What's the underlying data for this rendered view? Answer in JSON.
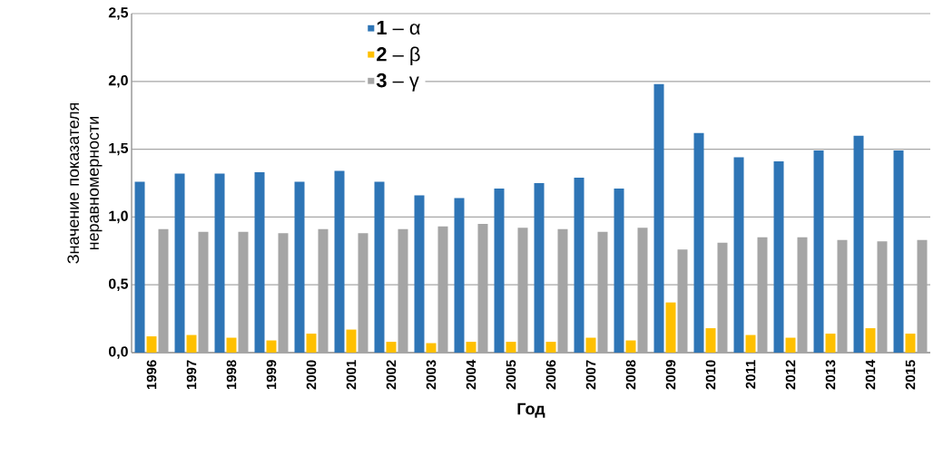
{
  "chart_data": {
    "type": "bar",
    "xlabel": "Год",
    "ylabel": "Значение показателя неравномерности",
    "categories": [
      "1996",
      "1997",
      "1998",
      "1999",
      "2000",
      "2001",
      "2002",
      "2003",
      "2004",
      "2005",
      "2006",
      "2007",
      "2008",
      "2009",
      "2010",
      "2011",
      "2012",
      "2013",
      "2014",
      "2015"
    ],
    "series": [
      {
        "name": "**1** – α",
        "color": "#2e75b6",
        "values": [
          1.26,
          1.32,
          1.32,
          1.33,
          1.26,
          1.34,
          1.26,
          1.16,
          1.14,
          1.21,
          1.25,
          1.29,
          1.21,
          1.98,
          1.62,
          1.44,
          1.41,
          1.49,
          1.6,
          1.49
        ]
      },
      {
        "name": "**2** – β",
        "color": "#ffc000",
        "values": [
          0.12,
          0.13,
          0.11,
          0.09,
          0.14,
          0.17,
          0.08,
          0.07,
          0.08,
          0.08,
          0.08,
          0.11,
          0.09,
          0.37,
          0.18,
          0.13,
          0.11,
          0.14,
          0.18,
          0.14
        ]
      },
      {
        "name": "**3** – γ",
        "color": "#a5a5a5",
        "values": [
          0.91,
          0.89,
          0.89,
          0.88,
          0.91,
          0.88,
          0.91,
          0.93,
          0.95,
          0.92,
          0.91,
          0.89,
          0.92,
          0.76,
          0.81,
          0.85,
          0.85,
          0.83,
          0.82,
          0.83
        ]
      }
    ],
    "ylim": [
      0,
      2.5
    ],
    "yticks": [
      {
        "value": 0,
        "label": "0,0"
      },
      {
        "value": 0.5,
        "label": "0,5"
      },
      {
        "value": 1,
        "label": "1,0"
      },
      {
        "value": 1.5,
        "label": "1,5"
      },
      {
        "value": 2,
        "label": "2,0"
      },
      {
        "value": 2.5,
        "label": "2,5"
      }
    ],
    "grid": "y",
    "legend": "top"
  }
}
